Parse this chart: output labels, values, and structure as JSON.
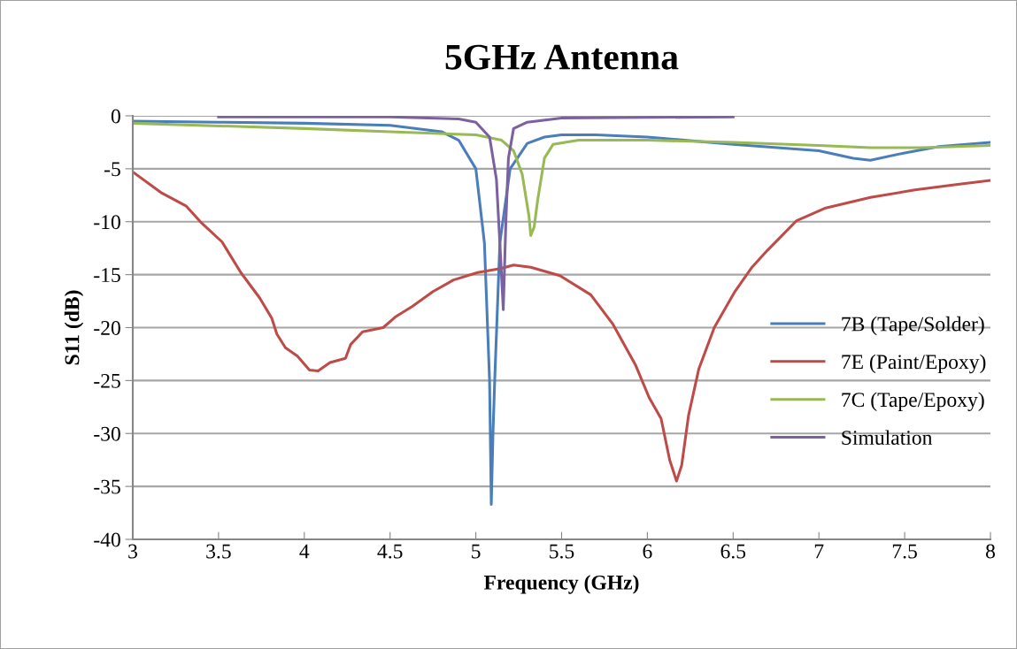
{
  "chart_data": {
    "type": "line",
    "title": "5GHz Antenna",
    "xlabel": "Frequency (GHz)",
    "ylabel": "S11 (dB)",
    "xlim": [
      3,
      8
    ],
    "xticks": [
      3,
      3.5,
      4,
      4.5,
      5,
      5.5,
      6,
      6.5,
      7,
      7.5,
      8
    ],
    "ylim": [
      -40,
      0
    ],
    "yticks": [
      -40,
      -35,
      -30,
      -25,
      -20,
      -15,
      -10,
      -5,
      0
    ],
    "grid": "y",
    "legend": "right",
    "marker": "none",
    "line_style": "solid",
    "series": [
      {
        "name": "7B (Tape/Solder)",
        "color": "#4a7ebb",
        "x": [
          3,
          3.5,
          4,
          4.5,
          4.8,
          4.9,
          5.0,
          5.05,
          5.08,
          5.09,
          5.1,
          5.11,
          5.14,
          5.2,
          5.3,
          5.4,
          5.5,
          5.7,
          6.0,
          6.5,
          7.0,
          7.2,
          7.3,
          7.5,
          7.7,
          8
        ],
        "values": [
          -0.5,
          -0.6,
          -0.7,
          -0.9,
          -1.5,
          -2.3,
          -5,
          -12,
          -25,
          -36.7,
          -30,
          -25,
          -12,
          -5,
          -2.6,
          -2.0,
          -1.8,
          -1.8,
          -2.0,
          -2.7,
          -3.3,
          -4.0,
          -4.2,
          -3.5,
          -2.9,
          -2.5
        ]
      },
      {
        "name": "7E (Paint/Epoxy)",
        "color": "#be4b48",
        "x": [
          3,
          3.17,
          3.31,
          3.4,
          3.52,
          3.63,
          3.74,
          3.81,
          3.84,
          3.89,
          3.96,
          4.03,
          4.08,
          4.15,
          4.24,
          4.27,
          4.34,
          4.46,
          4.53,
          4.63,
          4.75,
          4.87,
          5.01,
          5.15,
          5.22,
          5.32,
          5.49,
          5.67,
          5.8,
          5.93,
          6.01,
          6.08,
          6.13,
          6.17,
          6.2,
          6.24,
          6.3,
          6.39,
          6.51,
          6.61,
          6.7,
          6.87,
          7.04,
          7.3,
          7.56,
          7.8,
          8
        ],
        "values": [
          -5.3,
          -7.3,
          -8.5,
          -10.1,
          -11.9,
          -14.8,
          -17.2,
          -19.1,
          -20.6,
          -21.9,
          -22.7,
          -24.0,
          -24.1,
          -23.3,
          -22.9,
          -21.6,
          -20.4,
          -20.0,
          -19.0,
          -18.0,
          -16.6,
          -15.5,
          -14.8,
          -14.4,
          -14.1,
          -14.3,
          -15.1,
          -16.9,
          -19.7,
          -23.5,
          -26.6,
          -28.6,
          -32.5,
          -34.5,
          -33.0,
          -28.3,
          -23.9,
          -20.0,
          -16.6,
          -14.3,
          -12.7,
          -9.9,
          -8.7,
          -7.7,
          -7.0,
          -6.5,
          -6.1
        ]
      },
      {
        "name": "7C (Tape/Epoxy)",
        "color": "#98b954",
        "x": [
          3,
          4,
          4.5,
          5,
          5.15,
          5.22,
          5.27,
          5.31,
          5.32,
          5.34,
          5.36,
          5.4,
          5.45,
          5.6,
          6,
          6.5,
          7,
          7.3,
          7.6,
          8
        ],
        "values": [
          -0.7,
          -1.2,
          -1.5,
          -1.8,
          -2.3,
          -3.3,
          -5.5,
          -9.5,
          -11.3,
          -10.5,
          -8,
          -4,
          -2.7,
          -2.3,
          -2.3,
          -2.5,
          -2.8,
          -3.0,
          -3.0,
          -2.8
        ]
      },
      {
        "name": "Simulation",
        "color": "#7d60a0",
        "x": [
          3.5,
          4.5,
          4.9,
          5.0,
          5.08,
          5.12,
          5.14,
          5.16,
          5.175,
          5.19,
          5.22,
          5.3,
          5.5,
          6.5
        ],
        "values": [
          -0.1,
          -0.1,
          -0.3,
          -0.6,
          -2.0,
          -6,
          -12,
          -18.3,
          -10,
          -4,
          -1.2,
          -0.6,
          -0.2,
          -0.1
        ]
      }
    ]
  }
}
